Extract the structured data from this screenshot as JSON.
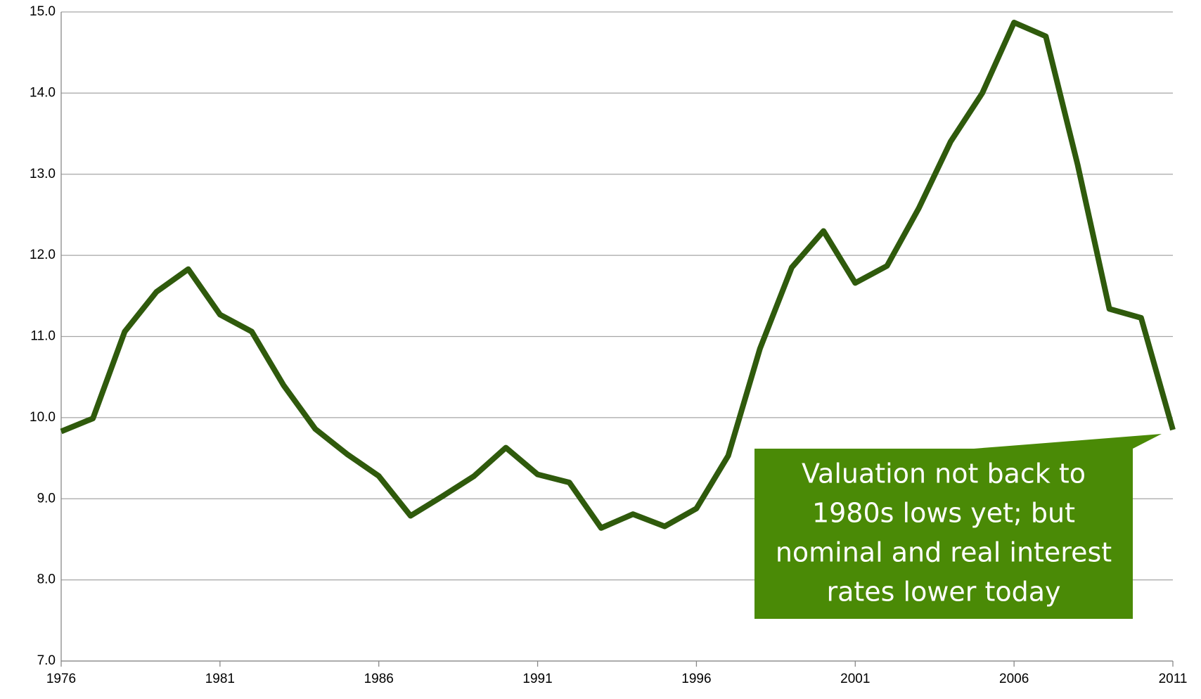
{
  "chart_data": {
    "type": "line",
    "x": [
      1976,
      1977,
      1978,
      1979,
      1980,
      1981,
      1982,
      1983,
      1984,
      1985,
      1986,
      1987,
      1988,
      1989,
      1990,
      1991,
      1992,
      1993,
      1994,
      1995,
      1996,
      1997,
      1998,
      1999,
      2000,
      2001,
      2002,
      2003,
      2004,
      2005,
      2006,
      2007,
      2008,
      2009,
      2010,
      2011
    ],
    "series": [
      {
        "color": "#2f5a0c",
        "values": [
          9.83,
          9.99,
          11.06,
          11.55,
          11.83,
          11.27,
          11.06,
          10.4,
          9.86,
          9.55,
          9.28,
          8.79,
          9.03,
          9.28,
          9.63,
          9.3,
          9.2,
          8.64,
          8.81,
          8.66,
          8.88,
          9.53,
          10.85,
          11.85,
          12.3,
          11.66,
          11.87,
          12.58,
          13.4,
          14.0,
          14.87,
          14.7,
          13.12,
          11.34,
          11.23,
          9.85
        ]
      }
    ],
    "xlim": [
      1976,
      2011
    ],
    "xticks": [
      1976,
      1981,
      1986,
      1991,
      1996,
      2001,
      2006,
      2011
    ],
    "ylim": [
      7,
      15
    ],
    "yticks": [
      {
        "value": 7,
        "label": "7.0"
      },
      {
        "value": 8,
        "label": "8.0"
      },
      {
        "value": 9,
        "label": "9.0"
      },
      {
        "value": 10,
        "label": "10.0"
      },
      {
        "value": 11,
        "label": "11.0"
      },
      {
        "value": 12,
        "label": "12.0"
      },
      {
        "value": 13,
        "label": "13.0"
      },
      {
        "value": 14,
        "label": "14.0"
      },
      {
        "value": 15,
        "label": "15.0"
      }
    ],
    "grid": true,
    "annotation": {
      "lines": [
        "Valuation not back to",
        "1980s lows yet; but",
        "nominal and real interest",
        "rates lower today"
      ],
      "color": "#4a8a06"
    }
  }
}
